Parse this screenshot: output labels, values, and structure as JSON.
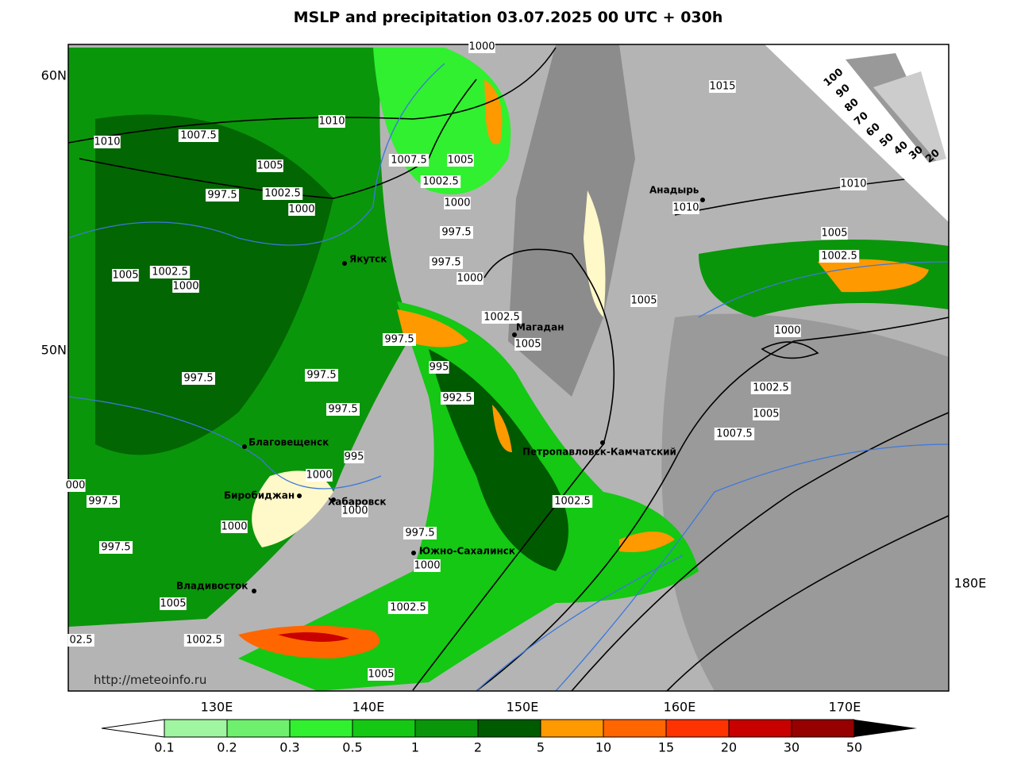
{
  "title": "MSLP and precipitation 03.07.2025 00 UTC + 030h",
  "lat_labels": [
    "60N",
    "50N"
  ],
  "lon_labels": [
    "130E",
    "140E",
    "150E",
    "160E",
    "170E",
    "180E"
  ],
  "cities": [
    "Якутск",
    "Магадан",
    "Анадырь",
    "Благовещенск",
    "Биробиджан",
    "Хабаровск",
    "Петропавловск-Камчатский",
    "Южно-Сахалинск",
    "Владивосток"
  ],
  "isobar_labels": [
    "1000",
    "1015",
    "1010",
    "1010",
    "1007.5",
    "1005",
    "1007.5",
    "1005",
    "1002.5",
    "997.5",
    "1002.5",
    "1000",
    "1000",
    "1010",
    "1010",
    "997.5",
    "1005",
    "1002.5",
    "997.5",
    "1005",
    "1002.5",
    "1000",
    "1000",
    "1005",
    "1002.5",
    "1000",
    "997.5",
    "1005",
    "995",
    "997.5",
    "997.5",
    "1002.5",
    "992.5",
    "997.5",
    "1005",
    "1007.5",
    "995",
    "1000",
    "000",
    "997.5",
    "1002.5",
    "1000",
    "1000",
    "997.5",
    "997.5",
    "1000",
    "1005",
    "1002.5",
    "1002.5",
    "02.5",
    "1005"
  ],
  "cloud_scale": [
    100,
    90,
    80,
    70,
    60,
    50,
    40,
    30,
    20
  ],
  "source": "http://meteoinfo.ru",
  "colorbar": {
    "levels": [
      0.1,
      0.2,
      0.3,
      0.5,
      1,
      2,
      5,
      10,
      15,
      20,
      30,
      50
    ],
    "colors": [
      "#a0f5a0",
      "#6ef06e",
      "#30f030",
      "#14c814",
      "#0a960a",
      "#005a00",
      "#ff9900",
      "#ff6600",
      "#ff3300",
      "#c80000",
      "#960000"
    ]
  }
}
